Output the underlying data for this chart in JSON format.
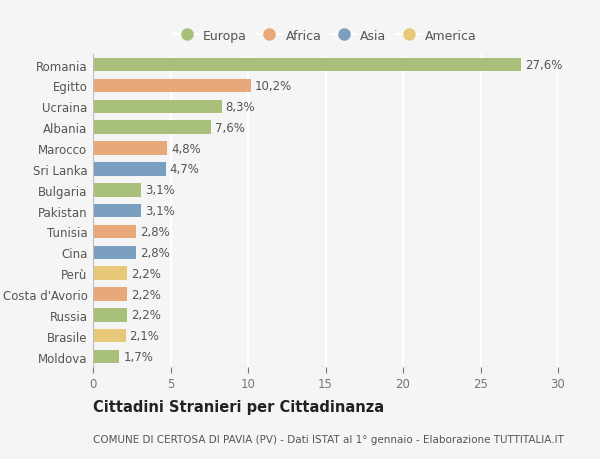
{
  "countries": [
    "Moldova",
    "Brasile",
    "Russia",
    "Costa d'Avorio",
    "Perù",
    "Cina",
    "Tunisia",
    "Pakistan",
    "Bulgaria",
    "Sri Lanka",
    "Marocco",
    "Albania",
    "Ucraina",
    "Egitto",
    "Romania"
  ],
  "values": [
    1.7,
    2.1,
    2.2,
    2.2,
    2.2,
    2.8,
    2.8,
    3.1,
    3.1,
    4.7,
    4.8,
    7.6,
    8.3,
    10.2,
    27.6
  ],
  "labels": [
    "1,7%",
    "2,1%",
    "2,2%",
    "2,2%",
    "2,2%",
    "2,8%",
    "2,8%",
    "3,1%",
    "3,1%",
    "4,7%",
    "4,8%",
    "7,6%",
    "8,3%",
    "10,2%",
    "27,6%"
  ],
  "continents": [
    "Europa",
    "America",
    "Europa",
    "Africa",
    "America",
    "Asia",
    "Africa",
    "Asia",
    "Europa",
    "Asia",
    "Africa",
    "Europa",
    "Europa",
    "Africa",
    "Europa"
  ],
  "colors": {
    "Europa": "#a8c07a",
    "Africa": "#e8a97a",
    "Asia": "#7a9fc0",
    "America": "#e8c97a"
  },
  "legend_order": [
    "Europa",
    "Africa",
    "Asia",
    "America"
  ],
  "xlim": [
    0,
    30
  ],
  "xticks": [
    0,
    5,
    10,
    15,
    20,
    25,
    30
  ],
  "title": "Cittadini Stranieri per Cittadinanza",
  "subtitle": "COMUNE DI CERTOSA DI PAVIA (PV) - Dati ISTAT al 1° gennaio - Elaborazione TUTTITALIA.IT",
  "background_color": "#f5f5f5",
  "bar_height": 0.65,
  "grid_color": "#ffffff",
  "label_fontsize": 8.5,
  "tick_fontsize": 8.5,
  "title_fontsize": 10.5,
  "subtitle_fontsize": 7.5
}
